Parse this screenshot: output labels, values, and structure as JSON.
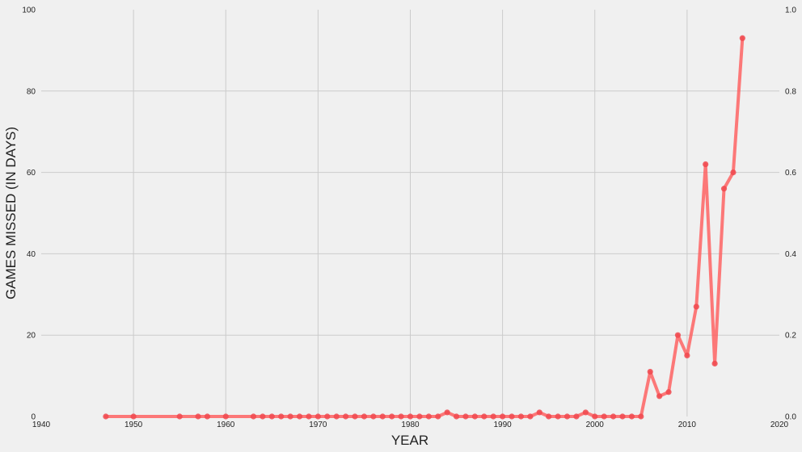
{
  "chart_data": {
    "type": "line",
    "title": "",
    "xlabel": "YEAR",
    "ylabel": "GAMES MISSED (IN DAYS)",
    "xlim": [
      1940,
      2020
    ],
    "ylim": [
      0,
      100
    ],
    "y2lim": [
      0.0,
      1.0
    ],
    "x_ticks": [
      "1940",
      "1950",
      "1960",
      "1970",
      "1980",
      "1990",
      "2000",
      "2010",
      "2020"
    ],
    "y_ticks": [
      "0",
      "20",
      "40",
      "60",
      "80",
      "100"
    ],
    "y2_ticks": [
      "0.0",
      "0.2",
      "0.4",
      "0.6",
      "0.8",
      "1.0"
    ],
    "grid": true,
    "series_color": "#ff5a5a",
    "marker_color": "#f0494f",
    "series": [
      {
        "x": [
          1947,
          1950,
          1955,
          1957,
          1958,
          1960,
          1963,
          1964,
          1965,
          1966,
          1967,
          1968,
          1969,
          1970,
          1971,
          1972,
          1973,
          1974,
          1975,
          1976,
          1977,
          1978,
          1979,
          1980,
          1981,
          1982,
          1983,
          1984,
          1985,
          1986,
          1987,
          1988,
          1989,
          1990,
          1991,
          1992,
          1993,
          1994,
          1995,
          1996,
          1997,
          1998,
          1999,
          2000,
          2001,
          2002,
          2003,
          2004,
          2005,
          2006,
          2007,
          2008,
          2009,
          2010,
          2011,
          2012,
          2013,
          2014,
          2015,
          2016
        ],
        "values": [
          0,
          0,
          0,
          0,
          0,
          0,
          0,
          0,
          0,
          0,
          0,
          0,
          0,
          0,
          0,
          0,
          0,
          0,
          0,
          0,
          0,
          0,
          0,
          0,
          0,
          0,
          0,
          1,
          0,
          0,
          0,
          0,
          0,
          0,
          0,
          0,
          0,
          1,
          0,
          0,
          0,
          0,
          1,
          0,
          0,
          0,
          0,
          0,
          0,
          11,
          5,
          6,
          20,
          15,
          27,
          62,
          13,
          56,
          60,
          93
        ]
      }
    ]
  }
}
